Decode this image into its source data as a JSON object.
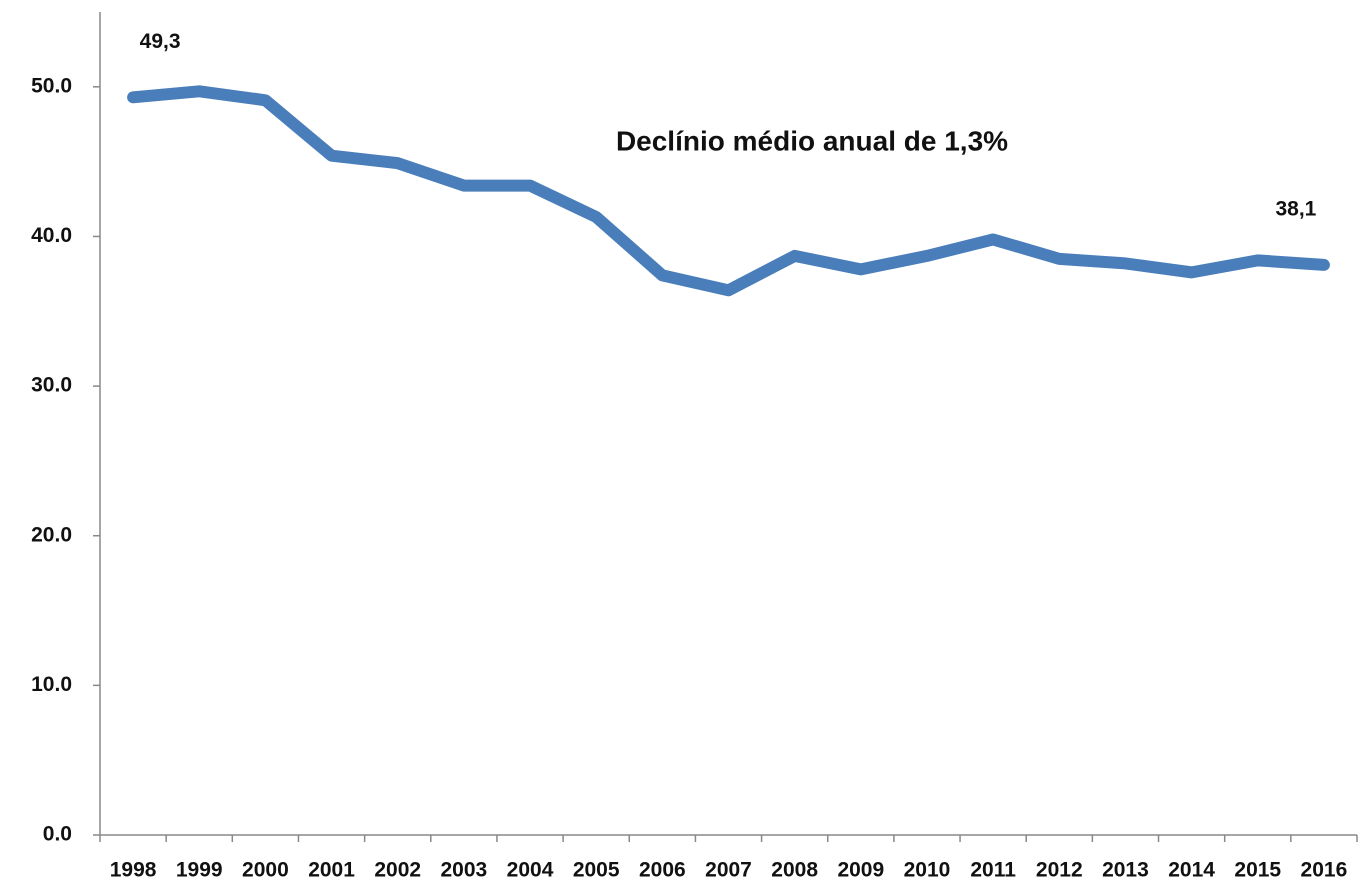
{
  "chart_data": {
    "type": "line",
    "annotation": "Declínio médio anual de 1,3%",
    "categories": [
      "1998",
      "1999",
      "2000",
      "2001",
      "2002",
      "2003",
      "2004",
      "2005",
      "2006",
      "2007",
      "2008",
      "2009",
      "2010",
      "2011",
      "2012",
      "2013",
      "2014",
      "2015",
      "2016"
    ],
    "values": [
      49.3,
      49.7,
      49.1,
      45.4,
      44.9,
      43.4,
      43.4,
      41.3,
      37.4,
      36.4,
      38.7,
      37.8,
      38.7,
      39.8,
      38.5,
      38.2,
      37.6,
      38.4,
      38.1
    ],
    "value_labels": [
      "49,3",
      null,
      null,
      null,
      null,
      null,
      null,
      null,
      null,
      null,
      null,
      null,
      null,
      null,
      null,
      null,
      null,
      null,
      "38,1"
    ],
    "color": "#4a7ebb",
    "ylim": [
      0,
      55
    ],
    "yticks": [
      {
        "value": 0,
        "label": "0.0"
      },
      {
        "value": 10,
        "label": "10.0"
      },
      {
        "value": 20,
        "label": "20.0"
      },
      {
        "value": 30,
        "label": "30.0"
      },
      {
        "value": 40,
        "label": "40.0"
      },
      {
        "value": 50,
        "label": "50.0"
      }
    ]
  }
}
